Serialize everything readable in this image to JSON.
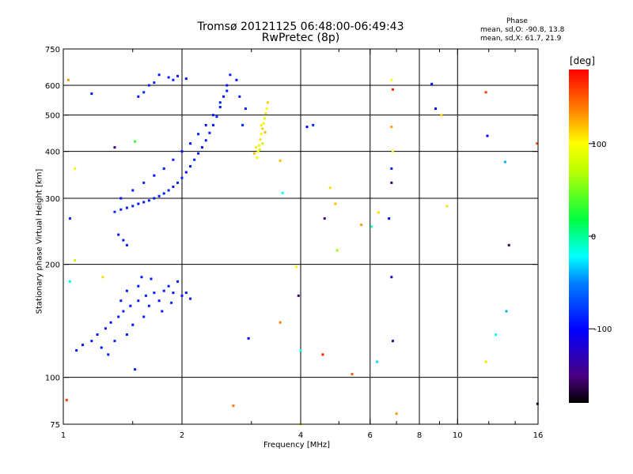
{
  "header": {
    "title_line1": "Tromsø 20121125 06:48:00-06:49:43",
    "title_line2": "RwPretec (8p)"
  },
  "phase_box": {
    "title": "Phase",
    "line1": "mean, sd,O: -90.8, 13.8",
    "line2": "mean, sd,X:  61.7, 21.9"
  },
  "colorbar": {
    "unit": "[deg]",
    "ticks": [
      {
        "value": 100,
        "label": "100"
      },
      {
        "value": 0,
        "label": "0"
      },
      {
        "value": -100,
        "label": "-100"
      }
    ],
    "range": [
      -180,
      180
    ]
  },
  "chart_data": {
    "type": "scatter",
    "xlabel": "Frequency [MHz]",
    "ylabel": "Stationary phase Virtual Height [km]",
    "x_scale": "log",
    "y_scale": "log",
    "xlim": [
      1,
      16
    ],
    "ylim": [
      75,
      750
    ],
    "x_ticks": [
      {
        "value": 1,
        "label": "1"
      },
      {
        "value": 2,
        "label": "2"
      },
      {
        "value": 4,
        "label": "4"
      },
      {
        "value": 6,
        "label": "6"
      },
      {
        "value": 8,
        "label": "8"
      },
      {
        "value": 10,
        "label": "10"
      },
      {
        "value": 16,
        "label": "16"
      }
    ],
    "x_minor_ticks": [
      1.5,
      3,
      5,
      7,
      9,
      12,
      14
    ],
    "y_ticks": [
      {
        "value": 75,
        "label": "75"
      },
      {
        "value": 100,
        "label": "100"
      },
      {
        "value": 200,
        "label": "200"
      },
      {
        "value": 300,
        "label": "300"
      },
      {
        "value": 400,
        "label": "400"
      },
      {
        "value": 500,
        "label": "500"
      },
      {
        "value": 600,
        "label": "600"
      },
      {
        "value": 750,
        "label": "750"
      }
    ],
    "grid_x": [
      2,
      4,
      6,
      8,
      10
    ],
    "grid_y": [
      100,
      200,
      300,
      400,
      500,
      600
    ],
    "grid": true,
    "series": [
      {
        "points": [
          [
            1.35,
            276,
            -85
          ],
          [
            1.4,
            280,
            -90
          ],
          [
            1.45,
            283,
            -92
          ],
          [
            1.5,
            286,
            -88
          ],
          [
            1.55,
            290,
            -95
          ],
          [
            1.6,
            293,
            -90
          ],
          [
            1.65,
            296,
            -87
          ],
          [
            1.7,
            300,
            -93
          ],
          [
            1.75,
            304,
            -89
          ],
          [
            1.8,
            309,
            -91
          ],
          [
            1.85,
            315,
            -86
          ],
          [
            1.9,
            322,
            -92
          ],
          [
            1.95,
            330,
            -90
          ],
          [
            2.0,
            340,
            -88
          ],
          [
            2.05,
            352,
            -94
          ],
          [
            2.1,
            365,
            -90
          ],
          [
            2.15,
            380,
            -87
          ],
          [
            2.2,
            395,
            -91
          ],
          [
            2.25,
            410,
            -93
          ],
          [
            2.3,
            428,
            -89
          ],
          [
            2.35,
            448,
            -90
          ],
          [
            2.4,
            470,
            -92
          ],
          [
            2.45,
            495,
            -88
          ],
          [
            2.5,
            525,
            -90
          ],
          [
            2.55,
            560,
            -95
          ],
          [
            2.6,
            600,
            -91
          ],
          [
            2.65,
            640,
            -88
          ],
          [
            1.4,
            300,
            -92
          ],
          [
            1.5,
            315,
            -90
          ],
          [
            1.6,
            330,
            -88
          ],
          [
            1.7,
            345,
            -95
          ],
          [
            1.8,
            360,
            -91
          ],
          [
            1.9,
            380,
            -89
          ],
          [
            2.0,
            400,
            -93
          ],
          [
            2.1,
            420,
            -90
          ],
          [
            2.2,
            445,
            -86
          ],
          [
            2.3,
            470,
            -92
          ],
          [
            2.4,
            500,
            -90
          ],
          [
            2.5,
            540,
            -88
          ],
          [
            2.6,
            580,
            -91
          ],
          [
            2.75,
            620,
            -94
          ],
          [
            2.8,
            560,
            -90
          ],
          [
            2.9,
            520,
            -85
          ],
          [
            2.85,
            470,
            -88
          ],
          [
            1.75,
            640,
            -92
          ],
          [
            1.85,
            630,
            -90
          ],
          [
            1.9,
            620,
            -88
          ],
          [
            1.95,
            635,
            -91
          ],
          [
            2.05,
            625,
            -93
          ],
          [
            1.65,
            600,
            -89
          ],
          [
            1.6,
            575,
            -87
          ],
          [
            1.55,
            560,
            -92
          ],
          [
            1.7,
            610,
            -90
          ],
          [
            1.08,
            118,
            -90
          ],
          [
            1.12,
            122,
            -92
          ],
          [
            1.18,
            125,
            -88
          ],
          [
            1.22,
            130,
            -91
          ],
          [
            1.28,
            135,
            -89
          ],
          [
            1.32,
            140,
            -93
          ],
          [
            1.38,
            145,
            -90
          ],
          [
            1.42,
            150,
            -87
          ],
          [
            1.48,
            155,
            -92
          ],
          [
            1.55,
            160,
            -90
          ],
          [
            1.62,
            165,
            -88
          ],
          [
            1.7,
            168,
            -91
          ],
          [
            1.8,
            170,
            -89
          ],
          [
            1.9,
            168,
            -93
          ],
          [
            2.0,
            165,
            -90
          ],
          [
            2.1,
            162,
            -88
          ],
          [
            1.25,
            120,
            -92
          ],
          [
            1.3,
            115,
            -90
          ],
          [
            1.35,
            125,
            -88
          ],
          [
            1.45,
            130,
            -91
          ],
          [
            1.5,
            138,
            -95
          ],
          [
            1.6,
            145,
            -90
          ],
          [
            1.65,
            155,
            -87
          ],
          [
            1.75,
            160,
            -93
          ],
          [
            1.85,
            175,
            -90
          ],
          [
            1.95,
            180,
            -88
          ],
          [
            1.55,
            175,
            -92
          ],
          [
            1.45,
            170,
            -90
          ],
          [
            1.4,
            160,
            -89
          ],
          [
            1.58,
            185,
            -91
          ],
          [
            1.67,
            183,
            -90
          ],
          [
            1.78,
            150,
            -92
          ],
          [
            1.88,
            158,
            -88
          ],
          [
            2.05,
            168,
            -91
          ],
          [
            1.38,
            240,
            -90
          ],
          [
            1.42,
            232,
            -92
          ],
          [
            1.45,
            225,
            -88
          ],
          [
            3.1,
            385,
            95
          ],
          [
            3.12,
            400,
            100
          ],
          [
            3.14,
            415,
            105
          ],
          [
            3.16,
            430,
            110
          ],
          [
            3.18,
            445,
            100
          ],
          [
            3.2,
            460,
            115
          ],
          [
            3.22,
            475,
            95
          ],
          [
            3.24,
            490,
            90
          ],
          [
            3.26,
            505,
            110
          ],
          [
            3.28,
            520,
            100
          ],
          [
            3.3,
            540,
            115
          ],
          [
            3.15,
            405,
            80
          ],
          [
            3.2,
            420,
            70
          ],
          [
            3.25,
            450,
            120
          ],
          [
            3.18,
            470,
            105
          ],
          [
            3.05,
            395,
            120
          ],
          [
            3.08,
            410,
            85
          ],
          [
            1.03,
            620,
            130
          ],
          [
            1.18,
            570,
            -95
          ],
          [
            1.35,
            410,
            -150
          ],
          [
            1.52,
            425,
            30
          ],
          [
            1.52,
            105,
            -90
          ],
          [
            1.07,
            360,
            90
          ],
          [
            1.07,
            205,
            75
          ],
          [
            1.04,
            265,
            -85
          ],
          [
            1.04,
            180,
            -20
          ],
          [
            1.26,
            185,
            110
          ],
          [
            1.02,
            87,
            160
          ],
          [
            2.7,
            84,
            140
          ],
          [
            2.95,
            127,
            -100
          ],
          [
            3.55,
            140,
            140
          ],
          [
            3.55,
            378,
            120
          ],
          [
            3.6,
            310,
            -20
          ],
          [
            3.9,
            197,
            100
          ],
          [
            3.95,
            165,
            -155
          ],
          [
            4.0,
            118,
            -20
          ],
          [
            4.0,
            75,
            100
          ],
          [
            4.15,
            465,
            -100
          ],
          [
            4.3,
            470,
            -85
          ],
          [
            4.55,
            115,
            170
          ],
          [
            4.6,
            265,
            -150
          ],
          [
            4.75,
            320,
            110
          ],
          [
            4.9,
            290,
            120
          ],
          [
            4.95,
            218,
            60
          ],
          [
            5.4,
            102,
            150
          ],
          [
            5.7,
            255,
            130
          ],
          [
            6.05,
            252,
            -10
          ],
          [
            6.25,
            110,
            -30
          ],
          [
            6.3,
            275,
            110
          ],
          [
            6.7,
            265,
            -100
          ],
          [
            6.8,
            185,
            -120
          ],
          [
            6.85,
            125,
            -140
          ],
          [
            6.8,
            330,
            -160
          ],
          [
            6.8,
            360,
            -90
          ],
          [
            6.85,
            400,
            100
          ],
          [
            6.8,
            465,
            130
          ],
          [
            6.85,
            585,
            170
          ],
          [
            6.8,
            620,
            100
          ],
          [
            7.0,
            80,
            130
          ],
          [
            8.6,
            605,
            -95
          ],
          [
            8.8,
            520,
            -100
          ],
          [
            9.1,
            500,
            110
          ],
          [
            9.4,
            286,
            110
          ],
          [
            11.8,
            575,
            160
          ],
          [
            11.8,
            110,
            110
          ],
          [
            11.9,
            440,
            -110
          ],
          [
            12.5,
            130,
            -20
          ],
          [
            13.2,
            375,
            -40
          ],
          [
            13.3,
            150,
            -40
          ],
          [
            13.5,
            225,
            -160
          ],
          [
            15.9,
            420,
            150
          ],
          [
            15.95,
            85,
            -170
          ]
        ]
      }
    ]
  }
}
